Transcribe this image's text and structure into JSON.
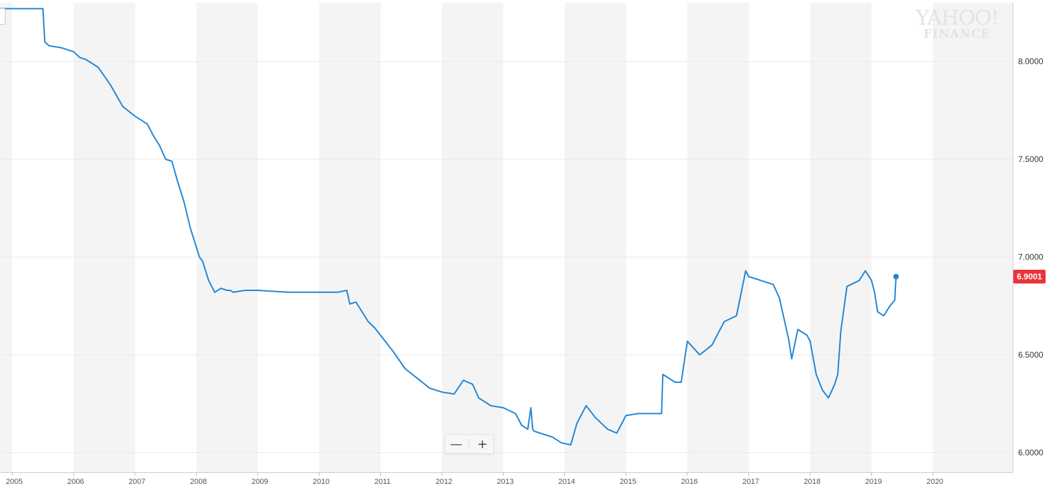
{
  "watermark": {
    "line1": "YAHOO!",
    "line2": "FINANCE"
  },
  "colors": {
    "line": "#1f86d6",
    "price_badge": "#e8343a",
    "band": "#f4f4f4",
    "grid": "#e9e9e9"
  },
  "zoom": {
    "minus_label": "—",
    "plus_label": "+"
  },
  "chart_data": {
    "type": "line",
    "title": "",
    "xlabel": "",
    "ylabel": "",
    "x_ticks": [
      "2005",
      "2006",
      "2007",
      "2008",
      "2009",
      "2010",
      "2011",
      "2012",
      "2013",
      "2014",
      "2015",
      "2016",
      "2017",
      "2018",
      "2019",
      "2020"
    ],
    "y_ticks": [
      "6.0000",
      "6.5000",
      "7.0000",
      "7.5000",
      "8.0000"
    ],
    "xlim": [
      2004.8,
      2021.3
    ],
    "ylim": [
      5.9,
      8.3
    ],
    "grid": true,
    "last_value_label": "6.9001",
    "series": [
      {
        "x": [
          2004.8,
          2005.0,
          2005.5,
          2005.53,
          2005.6,
          2005.8,
          2006.0,
          2006.1,
          2006.2,
          2006.4,
          2006.6,
          2006.8,
          2007.0,
          2007.2,
          2007.3,
          2007.4,
          2007.5,
          2007.6,
          2007.7,
          2007.8,
          2007.9,
          2008.0,
          2008.05,
          2008.1,
          2008.2,
          2008.3,
          2008.4,
          2008.5,
          2008.55,
          2008.6,
          2008.8,
          2009.0,
          2009.5,
          2010.0,
          2010.3,
          2010.45,
          2010.5,
          2010.6,
          2010.7,
          2010.8,
          2010.9,
          2011.0,
          2011.2,
          2011.4,
          2011.6,
          2011.8,
          2012.0,
          2012.2,
          2012.35,
          2012.5,
          2012.6,
          2012.8,
          2013.0,
          2013.2,
          2013.3,
          2013.4,
          2013.45,
          2013.48,
          2013.5,
          2013.6,
          2013.8,
          2013.95,
          2014.1,
          2014.2,
          2014.35,
          2014.5,
          2014.7,
          2014.85,
          2015.0,
          2015.2,
          2015.3,
          2015.58,
          2015.6,
          2015.8,
          2015.9,
          2016.0,
          2016.2,
          2016.4,
          2016.6,
          2016.8,
          2016.95,
          2017.0,
          2017.2,
          2017.4,
          2017.5,
          2017.6,
          2017.65,
          2017.7,
          2017.8,
          2017.95,
          2018.0,
          2018.1,
          2018.2,
          2018.3,
          2018.4,
          2018.45,
          2018.5,
          2018.6,
          2018.8,
          2018.9,
          2019.0,
          2019.05,
          2019.1,
          2019.2,
          2019.3,
          2019.38,
          2019.4
        ],
        "values": [
          8.27,
          8.27,
          8.27,
          8.1,
          8.08,
          8.07,
          8.05,
          8.02,
          8.01,
          7.97,
          7.88,
          7.77,
          7.72,
          7.68,
          7.62,
          7.57,
          7.5,
          7.49,
          7.38,
          7.28,
          7.15,
          7.05,
          7.0,
          6.98,
          6.88,
          6.82,
          6.84,
          6.83,
          6.83,
          6.82,
          6.83,
          6.83,
          6.82,
          6.82,
          6.82,
          6.83,
          6.76,
          6.77,
          6.72,
          6.67,
          6.64,
          6.6,
          6.52,
          6.43,
          6.38,
          6.33,
          6.31,
          6.3,
          6.37,
          6.35,
          6.28,
          6.24,
          6.23,
          6.2,
          6.14,
          6.12,
          6.23,
          6.12,
          6.11,
          6.1,
          6.08,
          6.05,
          6.04,
          6.15,
          6.24,
          6.18,
          6.12,
          6.1,
          6.19,
          6.2,
          6.2,
          6.2,
          6.4,
          6.36,
          6.36,
          6.57,
          6.5,
          6.55,
          6.67,
          6.7,
          6.93,
          6.9,
          6.88,
          6.86,
          6.79,
          6.65,
          6.58,
          6.48,
          6.63,
          6.6,
          6.57,
          6.4,
          6.32,
          6.28,
          6.35,
          6.4,
          6.62,
          6.85,
          6.88,
          6.93,
          6.88,
          6.82,
          6.72,
          6.7,
          6.75,
          6.78,
          6.9
        ]
      }
    ]
  }
}
